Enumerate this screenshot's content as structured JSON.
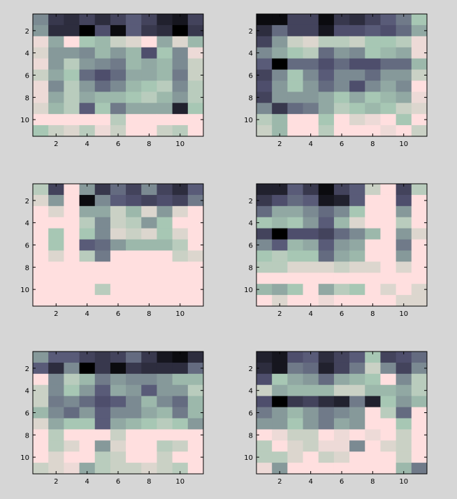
{
  "figure": {
    "background": "#d6d6d6"
  },
  "chart_data": [
    {
      "type": "heatmap",
      "title": "",
      "xlabel": "",
      "ylabel": "",
      "rows": 11,
      "cols": 11,
      "xticks": [
        2,
        4,
        6,
        8,
        10
      ],
      "yticks": [
        2,
        4,
        6,
        8,
        10
      ],
      "colormap": "bone (0 = black, 1 = white)",
      "values": [
        [
          0.55,
          0.25,
          0.2,
          0.3,
          0.2,
          0.3,
          0.4,
          0.3,
          0.15,
          0.1,
          0.3
        ],
        [
          0.6,
          0.2,
          0.2,
          0.0,
          0.35,
          0.05,
          0.4,
          0.25,
          0.2,
          0.0,
          0.25
        ],
        [
          0.95,
          0.65,
          1.0,
          0.75,
          0.7,
          0.85,
          0.9,
          1.0,
          0.65,
          0.9,
          0.7
        ],
        [
          0.9,
          0.6,
          0.6,
          0.55,
          0.7,
          0.6,
          0.7,
          0.35,
          0.75,
          0.55,
          0.95
        ],
        [
          0.95,
          0.6,
          0.8,
          0.6,
          0.55,
          0.5,
          0.7,
          0.65,
          0.7,
          0.55,
          0.85
        ],
        [
          0.85,
          0.65,
          0.75,
          0.45,
          0.35,
          0.45,
          0.65,
          0.65,
          0.7,
          0.5,
          0.85
        ],
        [
          0.95,
          0.55,
          0.8,
          0.6,
          0.45,
          0.55,
          0.7,
          0.75,
          0.8,
          0.55,
          0.8
        ],
        [
          0.95,
          0.65,
          0.8,
          0.65,
          0.7,
          0.7,
          0.75,
          0.8,
          0.7,
          0.6,
          0.8
        ],
        [
          0.9,
          0.7,
          0.8,
          0.4,
          0.75,
          0.5,
          0.65,
          0.65,
          0.65,
          0.15,
          0.75
        ],
        [
          1.0,
          1.0,
          1.0,
          1.0,
          1.0,
          0.8,
          1.0,
          1.0,
          1.0,
          1.0,
          1.0
        ],
        [
          0.75,
          0.85,
          0.9,
          0.8,
          0.95,
          0.85,
          1.0,
          1.0,
          0.85,
          0.8,
          1.0
        ]
      ]
    },
    {
      "type": "heatmap",
      "title": "",
      "xlabel": "",
      "ylabel": "",
      "rows": 11,
      "cols": 11,
      "xticks": [
        2,
        4,
        6,
        8,
        10
      ],
      "yticks": [
        2,
        4,
        6,
        8,
        10
      ],
      "colormap": "bone (0 = black, 1 = white)",
      "values": [
        [
          0.05,
          0.05,
          0.3,
          0.3,
          0.05,
          0.25,
          0.2,
          0.3,
          0.4,
          0.5,
          0.75
        ],
        [
          0.2,
          0.45,
          0.3,
          0.3,
          0.1,
          0.35,
          0.35,
          0.4,
          0.35,
          0.45,
          0.65
        ],
        [
          0.3,
          0.6,
          0.85,
          0.9,
          0.8,
          0.8,
          0.85,
          0.75,
          0.75,
          0.8,
          0.95
        ],
        [
          0.55,
          0.65,
          0.75,
          0.8,
          0.45,
          0.6,
          0.55,
          0.75,
          0.7,
          0.65,
          0.95
        ],
        [
          0.4,
          0.0,
          0.45,
          0.45,
          0.35,
          0.45,
          0.35,
          0.35,
          0.45,
          0.45,
          0.7
        ],
        [
          0.3,
          0.55,
          0.75,
          0.55,
          0.4,
          0.55,
          0.55,
          0.45,
          0.6,
          0.6,
          0.85
        ],
        [
          0.35,
          0.6,
          0.75,
          0.6,
          0.45,
          0.55,
          0.35,
          0.55,
          0.65,
          0.55,
          1.0
        ],
        [
          0.3,
          0.6,
          0.6,
          0.6,
          0.65,
          0.75,
          0.65,
          0.75,
          0.7,
          0.65,
          0.95
        ],
        [
          0.55,
          0.25,
          0.45,
          0.5,
          0.65,
          0.8,
          0.75,
          0.7,
          0.75,
          0.85,
          0.9
        ],
        [
          0.8,
          0.7,
          1.0,
          1.0,
          0.75,
          1.0,
          0.9,
          0.95,
          1.0,
          0.75,
          1.0
        ],
        [
          0.85,
          0.7,
          1.0,
          1.0,
          0.8,
          1.0,
          1.0,
          1.0,
          0.95,
          1.0,
          0.85
        ]
      ]
    },
    {
      "type": "heatmap",
      "title": "",
      "xlabel": "",
      "ylabel": "",
      "rows": 11,
      "cols": 11,
      "xticks": [
        2,
        4,
        6,
        8,
        10
      ],
      "yticks": [
        2,
        4,
        6,
        8,
        10
      ],
      "colormap": "bone (0 = black, 1 = white)",
      "values": [
        [
          0.8,
          0.3,
          1.0,
          0.6,
          0.25,
          0.45,
          0.3,
          0.55,
          0.3,
          0.2,
          0.4
        ],
        [
          0.9,
          0.6,
          1.0,
          0.05,
          0.55,
          0.4,
          0.35,
          0.3,
          0.35,
          0.3,
          0.5
        ],
        [
          1.0,
          0.9,
          1.0,
          0.65,
          0.65,
          0.85,
          0.7,
          0.9,
          0.6,
          0.9,
          1.0
        ],
        [
          1.0,
          1.0,
          1.0,
          0.8,
          0.55,
          0.85,
          0.8,
          0.6,
          0.75,
          1.0,
          1.0
        ],
        [
          1.0,
          0.75,
          1.0,
          0.75,
          0.55,
          0.9,
          0.85,
          0.9,
          0.75,
          0.9,
          1.0
        ],
        [
          1.0,
          0.75,
          1.0,
          0.4,
          0.45,
          0.6,
          0.7,
          0.7,
          0.7,
          0.8,
          1.0
        ],
        [
          1.0,
          0.9,
          1.0,
          0.8,
          0.5,
          1.0,
          1.0,
          1.0,
          1.0,
          0.85,
          0.9
        ],
        [
          1.0,
          1.0,
          1.0,
          1.0,
          1.0,
          1.0,
          1.0,
          1.0,
          1.0,
          1.0,
          1.0
        ],
        [
          1.0,
          1.0,
          1.0,
          1.0,
          1.0,
          1.0,
          1.0,
          1.0,
          1.0,
          1.0,
          1.0
        ],
        [
          1.0,
          1.0,
          1.0,
          1.0,
          0.8,
          1.0,
          1.0,
          1.0,
          1.0,
          1.0,
          1.0
        ],
        [
          1.0,
          1.0,
          1.0,
          1.0,
          1.0,
          1.0,
          1.0,
          1.0,
          1.0,
          1.0,
          1.0
        ]
      ]
    },
    {
      "type": "heatmap",
      "title": "",
      "xlabel": "",
      "ylabel": "",
      "rows": 11,
      "cols": 11,
      "xticks": [
        2,
        4,
        6,
        8,
        10
      ],
      "yticks": [
        2,
        4,
        6,
        8,
        10
      ],
      "colormap": "bone (0 = black, 1 = white)",
      "values": [
        [
          0.15,
          0.15,
          0.4,
          0.25,
          0.05,
          0.3,
          0.4,
          0.85,
          1.0,
          0.3,
          0.8
        ],
        [
          0.25,
          0.35,
          0.45,
          0.4,
          0.1,
          0.15,
          0.4,
          1.0,
          1.0,
          0.35,
          1.0
        ],
        [
          0.45,
          0.65,
          0.65,
          0.55,
          0.45,
          0.55,
          0.75,
          1.0,
          1.0,
          0.6,
          1.0
        ],
        [
          0.75,
          0.7,
          0.75,
          0.6,
          0.4,
          0.7,
          0.9,
          1.0,
          1.0,
          0.8,
          1.0
        ],
        [
          0.3,
          0.0,
          0.35,
          0.35,
          0.3,
          0.45,
          0.55,
          0.7,
          1.0,
          0.6,
          0.9
        ],
        [
          0.55,
          0.4,
          0.7,
          0.65,
          0.4,
          0.6,
          0.65,
          1.0,
          1.0,
          0.5,
          1.0
        ],
        [
          0.75,
          0.8,
          0.75,
          0.75,
          0.45,
          0.65,
          0.7,
          1.0,
          1.0,
          0.6,
          1.0
        ],
        [
          0.8,
          0.8,
          0.9,
          0.9,
          0.9,
          0.85,
          0.9,
          0.9,
          1.0,
          0.9,
          1.0
        ],
        [
          1.0,
          1.0,
          1.0,
          1.0,
          1.0,
          1.0,
          1.0,
          1.0,
          1.0,
          1.0,
          1.0
        ],
        [
          0.7,
          0.65,
          0.75,
          1.0,
          0.65,
          0.8,
          0.75,
          1.0,
          0.9,
          1.0,
          0.9
        ],
        [
          1.0,
          0.9,
          1.0,
          1.0,
          0.95,
          1.0,
          1.0,
          1.0,
          1.0,
          0.9,
          0.9
        ]
      ]
    },
    {
      "type": "heatmap",
      "title": "",
      "xlabel": "",
      "ylabel": "",
      "rows": 11,
      "cols": 11,
      "xticks": [
        2,
        4,
        6,
        8,
        10
      ],
      "yticks": [
        2,
        4,
        6,
        8,
        10
      ],
      "colormap": "bone (0 = black, 1 = white)",
      "values": [
        [
          0.6,
          0.4,
          0.4,
          0.3,
          0.25,
          0.3,
          0.45,
          0.25,
          0.1,
          0.05,
          0.2
        ],
        [
          0.4,
          0.2,
          0.55,
          0.0,
          0.25,
          0.05,
          0.25,
          0.2,
          0.2,
          0.2,
          0.45
        ],
        [
          1.0,
          0.55,
          0.8,
          0.7,
          0.5,
          0.6,
          0.55,
          0.55,
          0.6,
          0.7,
          0.7
        ],
        [
          0.85,
          0.55,
          0.75,
          0.6,
          0.4,
          0.65,
          0.6,
          0.4,
          0.6,
          0.6,
          0.8
        ],
        [
          0.85,
          0.5,
          0.55,
          0.45,
          0.35,
          0.4,
          0.55,
          0.7,
          0.55,
          0.45,
          0.7
        ],
        [
          0.7,
          0.55,
          0.45,
          0.6,
          0.4,
          0.55,
          0.55,
          0.65,
          0.7,
          0.5,
          0.7
        ],
        [
          0.9,
          0.65,
          0.75,
          0.75,
          0.4,
          0.65,
          0.7,
          0.75,
          0.8,
          0.75,
          0.6
        ],
        [
          1.0,
          0.8,
          1.0,
          1.0,
          1.0,
          0.85,
          1.0,
          1.0,
          1.0,
          1.0,
          1.0
        ],
        [
          1.0,
          0.8,
          0.9,
          1.0,
          0.6,
          0.9,
          1.0,
          1.0,
          0.8,
          0.85,
          1.0
        ],
        [
          1.0,
          0.9,
          1.0,
          1.0,
          0.8,
          0.85,
          1.0,
          1.0,
          0.85,
          1.0,
          1.0
        ],
        [
          0.85,
          0.9,
          0.95,
          0.65,
          0.8,
          0.85,
          0.85,
          0.9,
          0.85,
          0.8,
          1.0
        ]
      ]
    },
    {
      "type": "heatmap",
      "title": "",
      "xlabel": "",
      "ylabel": "",
      "rows": 11,
      "cols": 11,
      "xticks": [
        2,
        4,
        6,
        8,
        10
      ],
      "yticks": [
        2,
        4,
        6,
        8,
        10
      ],
      "colormap": "bone (0 = black, 1 = white)",
      "values": [
        [
          0.15,
          0.1,
          0.35,
          0.4,
          0.2,
          0.3,
          0.4,
          0.75,
          0.3,
          0.35,
          0.45
        ],
        [
          0.2,
          0.1,
          0.5,
          0.45,
          0.15,
          0.3,
          0.5,
          0.85,
          0.55,
          0.3,
          0.55
        ],
        [
          0.35,
          0.75,
          0.65,
          0.6,
          0.45,
          0.65,
          0.7,
          0.75,
          1.0,
          0.55,
          0.8
        ],
        [
          0.85,
          0.65,
          0.7,
          0.7,
          0.7,
          0.85,
          0.85,
          0.7,
          0.7,
          0.65,
          0.8
        ],
        [
          0.35,
          0.0,
          0.25,
          0.3,
          0.2,
          0.15,
          0.5,
          0.15,
          0.75,
          0.6,
          0.7
        ],
        [
          0.5,
          0.6,
          0.7,
          0.6,
          0.5,
          0.55,
          0.6,
          1.0,
          0.8,
          0.45,
          1.0
        ],
        [
          0.6,
          0.6,
          0.75,
          0.6,
          0.5,
          0.65,
          0.6,
          1.0,
          1.0,
          0.75,
          1.0
        ],
        [
          1.0,
          0.95,
          0.85,
          0.85,
          1.0,
          0.95,
          1.0,
          0.95,
          1.0,
          0.85,
          1.0
        ],
        [
          0.8,
          1.0,
          0.9,
          0.85,
          0.95,
          0.95,
          0.55,
          1.0,
          0.9,
          0.85,
          1.0
        ],
        [
          0.8,
          0.8,
          0.9,
          1.0,
          0.85,
          0.9,
          1.0,
          1.0,
          1.0,
          0.85,
          1.0
        ],
        [
          0.95,
          0.6,
          1.0,
          1.0,
          1.0,
          1.0,
          1.0,
          1.0,
          1.0,
          0.7,
          0.5
        ]
      ]
    }
  ]
}
